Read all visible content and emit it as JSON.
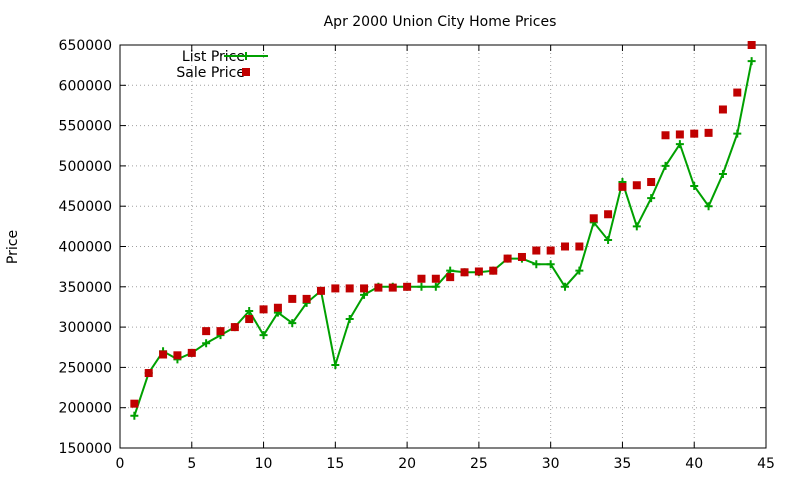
{
  "chart_data": {
    "type": "line",
    "title": "Apr 2000 Union City Home Prices",
    "xlabel": "",
    "ylabel": "Price",
    "xlim": [
      0,
      45
    ],
    "ylim": [
      150000,
      650000
    ],
    "xticks": [
      0,
      5,
      10,
      15,
      20,
      25,
      30,
      35,
      40,
      45
    ],
    "yticks": [
      150000,
      200000,
      250000,
      300000,
      350000,
      400000,
      450000,
      500000,
      550000,
      600000,
      650000
    ],
    "grid": true,
    "legend_position": "top-left",
    "series": [
      {
        "name": "List Price",
        "style": "line-with-plus-markers",
        "color": "#00a000",
        "x": [
          1,
          2,
          3,
          4,
          5,
          6,
          7,
          8,
          9,
          10,
          11,
          12,
          13,
          14,
          15,
          16,
          17,
          18,
          19,
          20,
          21,
          22,
          23,
          24,
          25,
          26,
          27,
          28,
          29,
          30,
          31,
          32,
          33,
          34,
          35,
          36,
          37,
          38,
          39,
          40,
          41,
          42,
          43,
          44
        ],
        "values": [
          190000,
          243000,
          270000,
          260000,
          268000,
          280000,
          290000,
          300000,
          320000,
          290000,
          318000,
          305000,
          330000,
          345000,
          253000,
          310000,
          340000,
          350000,
          350000,
          350000,
          350000,
          350000,
          370000,
          368000,
          368000,
          370000,
          385000,
          385000,
          378000,
          378000,
          350000,
          370000,
          430000,
          408000,
          480000,
          425000,
          460000,
          500000,
          527000,
          475000,
          450000,
          490000,
          540000,
          630000
        ]
      },
      {
        "name": "Sale Price",
        "style": "square-markers",
        "color": "#c00000",
        "x": [
          1,
          2,
          3,
          4,
          5,
          6,
          7,
          8,
          9,
          10,
          11,
          12,
          13,
          14,
          15,
          16,
          17,
          18,
          19,
          20,
          21,
          22,
          23,
          24,
          25,
          26,
          27,
          28,
          29,
          30,
          31,
          32,
          33,
          34,
          35,
          36,
          37,
          38,
          39,
          40,
          41,
          42,
          43,
          44
        ],
        "values": [
          205000,
          243000,
          266000,
          265000,
          268000,
          295000,
          295000,
          300000,
          310000,
          322000,
          324000,
          335000,
          335000,
          345000,
          348000,
          348000,
          348000,
          349000,
          349000,
          350000,
          360000,
          360000,
          362000,
          368000,
          369000,
          370000,
          385000,
          387000,
          395000,
          395000,
          400000,
          400000,
          435000,
          440000,
          474000,
          476000,
          480000,
          538000,
          539000,
          540000,
          541000,
          570000,
          591000,
          650000
        ]
      }
    ]
  }
}
